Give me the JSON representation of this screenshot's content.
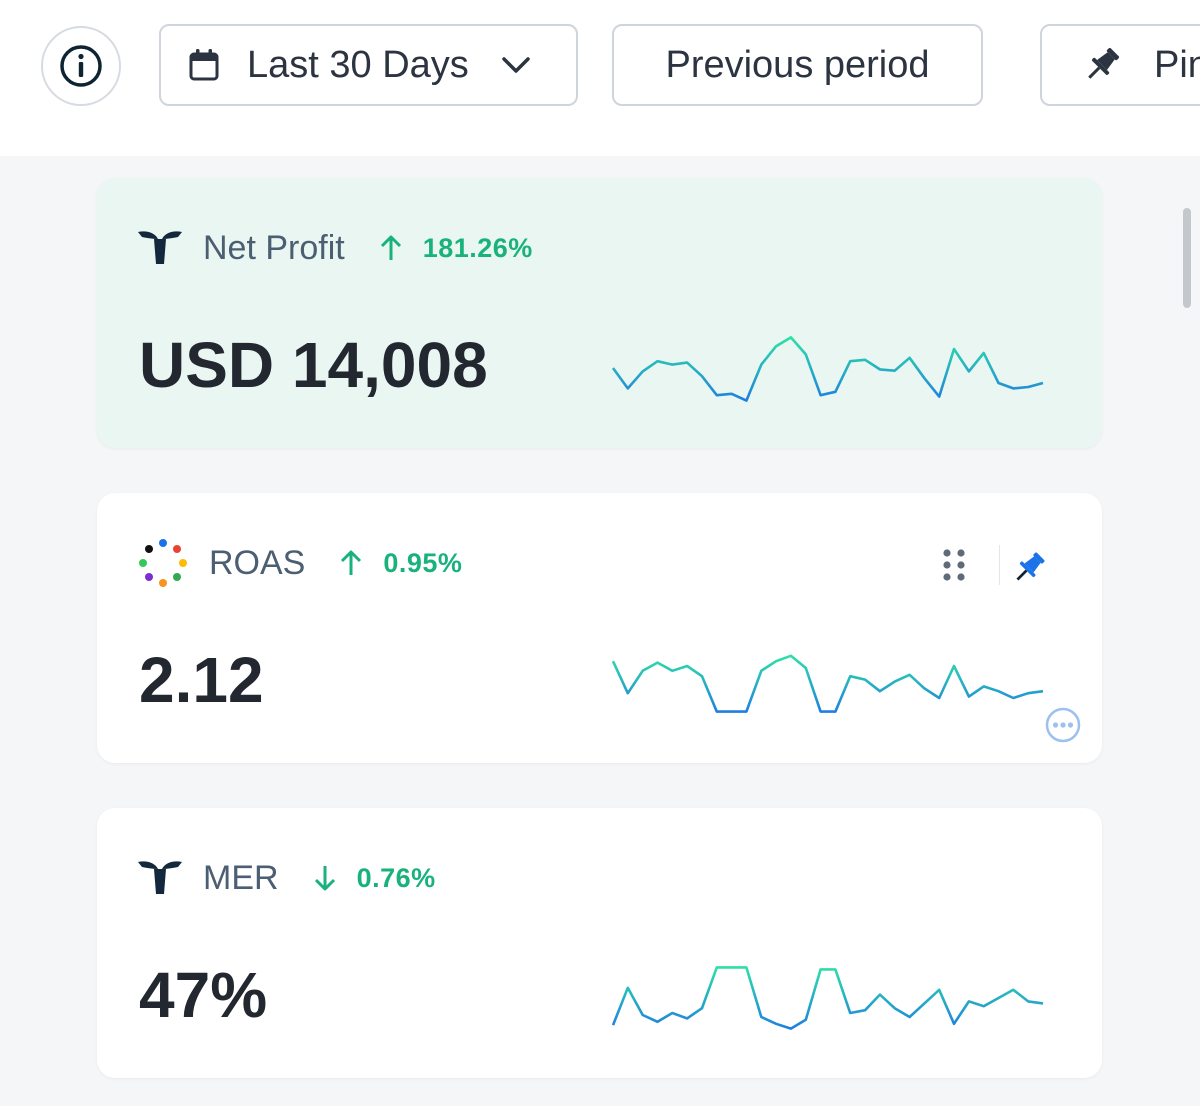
{
  "toolbar": {
    "date_range_label": "Last 30 Days",
    "compare_label": "Previous period",
    "pin_label": "Pin"
  },
  "icons": {
    "info": "info-icon",
    "calendar": "calendar-icon",
    "chevron": "chevron-down-icon",
    "pin": "pin-icon",
    "drag": "drag-handle-icon",
    "more": "more-options-icon"
  },
  "colors": {
    "positive": "#19b27c",
    "spark_start": "#2ee0a6",
    "spark_end": "#1f7fe0",
    "highlight_card": "#eaf6f1",
    "pin_active": "#1a73e8"
  },
  "metrics": [
    {
      "name": "Net Profit",
      "direction": "up",
      "change": "181.26%",
      "value": "USD 14,008",
      "pinned": false,
      "trend": [
        0.5,
        0.2,
        0.45,
        0.6,
        0.55,
        0.58,
        0.38,
        0.1,
        0.12,
        0.02,
        0.55,
        0.82,
        0.95,
        0.7,
        0.1,
        0.15,
        0.6,
        0.62,
        0.48,
        0.46,
        0.65,
        0.35,
        0.08,
        0.78,
        0.45,
        0.72,
        0.28,
        0.2,
        0.22,
        0.28
      ]
    },
    {
      "name": "ROAS",
      "direction": "up",
      "change": "0.95%",
      "value": "2.12",
      "pinned": true,
      "trend": [
        0.82,
        0.35,
        0.68,
        0.8,
        0.68,
        0.75,
        0.6,
        0.08,
        0.08,
        0.08,
        0.68,
        0.82,
        0.9,
        0.72,
        0.08,
        0.08,
        0.6,
        0.55,
        0.38,
        0.52,
        0.62,
        0.42,
        0.28,
        0.75,
        0.3,
        0.45,
        0.38,
        0.28,
        0.35,
        0.38
      ]
    },
    {
      "name": "MER",
      "direction": "down",
      "change": "0.76%",
      "value": "47%",
      "pinned": false,
      "trend": [
        0.1,
        0.65,
        0.25,
        0.15,
        0.28,
        0.2,
        0.35,
        0.95,
        0.95,
        0.95,
        0.22,
        0.12,
        0.05,
        0.18,
        0.92,
        0.92,
        0.28,
        0.32,
        0.55,
        0.35,
        0.22,
        0.42,
        0.62,
        0.12,
        0.45,
        0.38,
        0.5,
        0.62,
        0.45,
        0.42
      ]
    }
  ]
}
